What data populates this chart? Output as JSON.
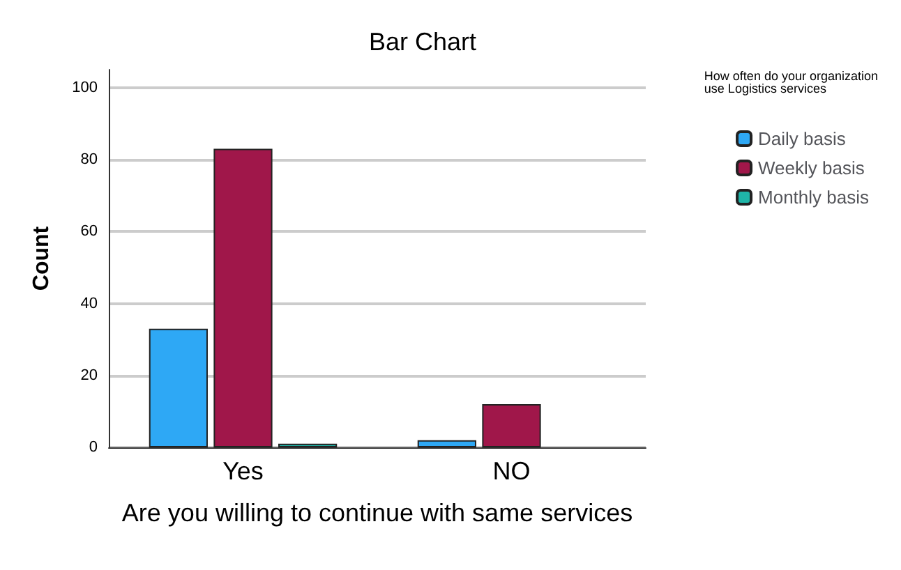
{
  "chart_data": {
    "type": "bar",
    "title": "Bar Chart",
    "xlabel": "Are you willing to continue with same services",
    "ylabel": "Count",
    "legend_title": "How often do your organization use Logistics services",
    "categories": [
      "Yes",
      "NO"
    ],
    "series": [
      {
        "name": "Daily basis",
        "color": "#2ea8f5",
        "values": [
          33,
          2
        ]
      },
      {
        "name": "Weekly basis",
        "color": "#a0174a",
        "values": [
          83,
          12
        ]
      },
      {
        "name": "Monthly basis",
        "color": "#1fb5a8",
        "values": [
          1,
          0
        ]
      }
    ],
    "ylim": [
      0,
      105
    ],
    "yticks": [
      0,
      20,
      40,
      60,
      80,
      100
    ],
    "grid": "y",
    "legend": "right"
  }
}
